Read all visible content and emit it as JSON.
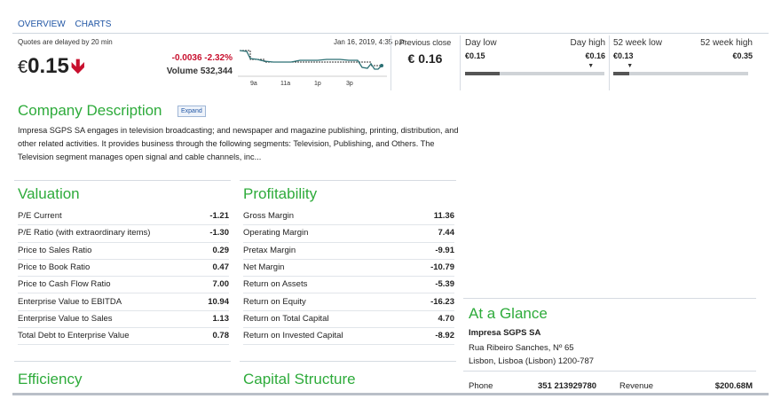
{
  "nav": {
    "tabs": [
      "OVERVIEW",
      "CHARTS"
    ]
  },
  "quote": {
    "delay_note": "Quotes are delayed by 20 min",
    "currency": "€",
    "price": "0.15",
    "change": "-0.0036 -2.32%",
    "volume": "Volume 532,344",
    "timestamp": "Jan 16, 2019, 4:35 p.m.",
    "spark_ticks": [
      "9a",
      "11a",
      "1p",
      "3p"
    ],
    "previous_close_label": "Previous close",
    "previous_close_value": "€ 0.16",
    "day_low_label": "Day low",
    "day_high_label": "Day high",
    "day_low": "€0.15",
    "day_high": "€0.16",
    "week52_low_label": "52 week low",
    "week52_high_label": "52 week high",
    "week52_low": "€0.13",
    "week52_high": "€0.35",
    "day_range_fill": 0.25,
    "day_marker": 0.9,
    "week52_range_fill": 0.12,
    "week52_marker": 0.12,
    "colors": {
      "down": "#c8102e",
      "accent": "#2eab3b",
      "link": "#2156a5"
    }
  },
  "company": {
    "title": "Company Description",
    "expand_label": "Expand",
    "description": "Impresa SGPS SA engages in television broadcasting; and newspaper and magazine publishing, printing, distribution, and other related activities. It provides business through the following segments: Television, Publishing, and Others. The Television segment manages open signal and cable channels, inc..."
  },
  "valuation": {
    "title": "Valuation",
    "rows": [
      {
        "label": "P/E Current",
        "value": "-1.21"
      },
      {
        "label": "P/E Ratio (with extraordinary items)",
        "value": "-1.30"
      },
      {
        "label": "Price to Sales Ratio",
        "value": "0.29"
      },
      {
        "label": "Price to Book Ratio",
        "value": "0.47"
      },
      {
        "label": "Price to Cash Flow Ratio",
        "value": "7.00"
      },
      {
        "label": "Enterprise Value to EBITDA",
        "value": "10.94"
      },
      {
        "label": "Enterprise Value to Sales",
        "value": "1.13"
      },
      {
        "label": "Total Debt to Enterprise Value",
        "value": "0.78"
      }
    ]
  },
  "profitability": {
    "title": "Profitability",
    "rows": [
      {
        "label": "Gross Margin",
        "value": "11.36"
      },
      {
        "label": "Operating Margin",
        "value": "7.44"
      },
      {
        "label": "Pretax Margin",
        "value": "-9.91"
      },
      {
        "label": "Net Margin",
        "value": "-10.79"
      },
      {
        "label": "Return on Assets",
        "value": "-5.39"
      },
      {
        "label": "Return on Equity",
        "value": "-16.23"
      },
      {
        "label": "Return on Total Capital",
        "value": "4.70"
      },
      {
        "label": "Return on Invested Capital",
        "value": "-8.92"
      }
    ]
  },
  "efficiency": {
    "title": "Efficiency"
  },
  "capital": {
    "title": "Capital Structure"
  },
  "glance": {
    "title": "At a Glance",
    "name": "Impresa SGPS SA",
    "address1": "Rua Ribeiro Sanches, Nº 65",
    "address2": "Lisbon, Lisboa (Lisbon) 1200-787",
    "phone_label": "Phone",
    "phone": "351 213929780",
    "revenue_label": "Revenue",
    "revenue": "$200.68M"
  }
}
